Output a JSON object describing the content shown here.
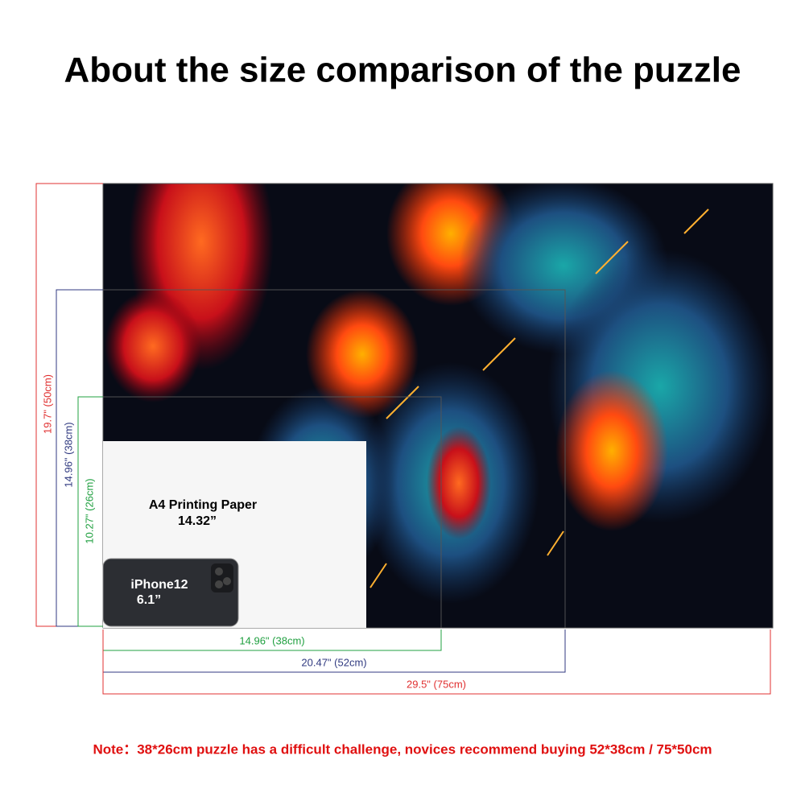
{
  "title": "About the size comparison of the puzzle",
  "height_labels": [
    "19.7\" (50cm)",
    "14.96\" (38cm)",
    "10.27\" (26cm)"
  ],
  "width_labels": [
    "14.96\" (38cm)",
    "20.47\" (52cm)",
    "29.5\" (75cm)"
  ],
  "paper": {
    "label": "A4 Printing Paper",
    "size": "14.32”"
  },
  "phone": {
    "label": "iPhone12",
    "size": "6.1”"
  },
  "note": "Note：38*26cm puzzle has a difficult challenge, novices recommend buying 52*38cm / 75*50cm"
}
